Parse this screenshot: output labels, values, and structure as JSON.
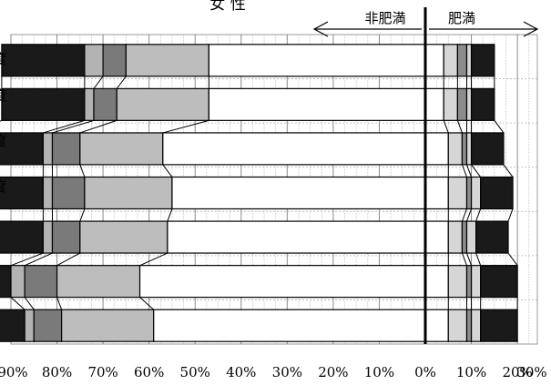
{
  "chart_data": {
    "type": "bar",
    "orientation": "horizontal",
    "stacked": true,
    "diverging": true,
    "title": "女 性",
    "header_left": "非肥満",
    "header_right": "肥満",
    "x_ticks": [
      "90%",
      "80%",
      "70%",
      "60%",
      "50%",
      "40%",
      "30%",
      "20%",
      "10%",
      "0%",
      "10%",
      "20%",
      "30%"
    ],
    "x_range": [
      -90,
      30
    ],
    "left_axis_labels": [
      "度",
      "度",
      "度",
      "度"
    ],
    "grid": "dotted-vertical",
    "segment_colors": [
      "#1a1a1a",
      "#b3b3b3",
      "#7a7a7a",
      "#bdbdbd",
      "#ffffff"
    ],
    "right_segment_colors": [
      "#ffffff",
      "#d6d6d6",
      "#8c8c8c",
      "#d6d6d6",
      "#1a1a1a"
    ],
    "bars": [
      {
        "left": [
          18,
          4,
          5,
          18,
          47
        ],
        "right": [
          4,
          3,
          2,
          1,
          5
        ]
      },
      {
        "left": [
          18,
          2,
          5,
          20,
          47
        ],
        "right": [
          4,
          3,
          2,
          1,
          5
        ]
      },
      {
        "left": [
          16,
          2,
          6,
          18,
          57
        ],
        "right": [
          5,
          3,
          1,
          1,
          7
        ]
      },
      {
        "left": [
          16,
          2,
          7,
          19,
          55
        ],
        "right": [
          5,
          4,
          1,
          2,
          7
        ]
      },
      {
        "left": [
          17,
          2,
          6,
          19,
          56
        ],
        "right": [
          5,
          3,
          1,
          2,
          7
        ]
      },
      {
        "left": [
          18,
          3,
          7,
          18,
          62
        ],
        "right": [
          5,
          4,
          1,
          2,
          8
        ]
      },
      {
        "left": [
          18,
          2,
          6,
          20,
          59
        ],
        "right": [
          5,
          4,
          1,
          2,
          8
        ]
      }
    ]
  }
}
